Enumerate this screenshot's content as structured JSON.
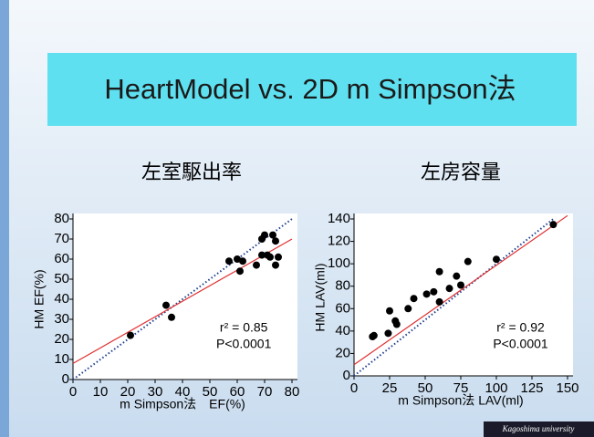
{
  "slide": {
    "title": "HeartModel vs. 2D m Simpson法",
    "footer": "Kagoshima university"
  },
  "chart_data": [
    {
      "type": "scatter",
      "title": "左室駆出率",
      "xlabel": "m Simpson法　EF(%)",
      "ylabel": "HM EF(%)",
      "xlim": [
        0,
        80
      ],
      "ylim": [
        0,
        80
      ],
      "xticks": [
        0,
        10,
        20,
        30,
        40,
        50,
        60,
        70,
        80
      ],
      "yticks": [
        0,
        10,
        20,
        30,
        40,
        50,
        60,
        70,
        80
      ],
      "color": "#000000",
      "x": [
        21,
        34,
        36,
        57,
        60,
        61,
        62,
        67,
        69,
        70,
        69,
        71,
        72,
        73,
        74,
        74,
        75
      ],
      "y": [
        22,
        37,
        31,
        59,
        60,
        54,
        59,
        57,
        70,
        72,
        62,
        62,
        61,
        72,
        69,
        57,
        61
      ],
      "lines": [
        {
          "color": "#1f3f8f",
          "style": "dotted",
          "x": [
            0,
            80
          ],
          "y": [
            0,
            80
          ]
        },
        {
          "color": "#e03030",
          "style": "solid",
          "x": [
            0,
            80
          ],
          "y": [
            8,
            70
          ]
        }
      ],
      "annotations": [
        "r² = 0.85",
        "P<0.0001"
      ]
    },
    {
      "type": "scatter",
      "title": "左房容量",
      "xlabel": "m Simpson法 LAV(ml)",
      "ylabel": "HM LAV(ml)",
      "xlim": [
        0,
        150
      ],
      "ylim": [
        0,
        140
      ],
      "xticks": [
        0,
        25,
        50,
        75,
        100,
        125,
        150
      ],
      "yticks": [
        0,
        20,
        40,
        60,
        80,
        100,
        120,
        140
      ],
      "color": "#000000",
      "x": [
        13,
        14,
        24,
        25,
        30,
        29,
        38,
        42,
        51,
        56,
        60,
        60,
        67,
        72,
        75,
        80,
        100,
        140
      ],
      "y": [
        35,
        36,
        38,
        58,
        46,
        49,
        60,
        69,
        73,
        75,
        66,
        93,
        78,
        89,
        81,
        102,
        104,
        135
      ],
      "lines": [
        {
          "color": "#1f3f8f",
          "style": "dotted",
          "x": [
            0,
            140
          ],
          "y": [
            0,
            140
          ]
        },
        {
          "color": "#e03030",
          "style": "solid",
          "x": [
            0,
            150
          ],
          "y": [
            10,
            143
          ]
        }
      ],
      "annotations": [
        "r² = 0.92",
        "P<0.0001"
      ]
    }
  ]
}
